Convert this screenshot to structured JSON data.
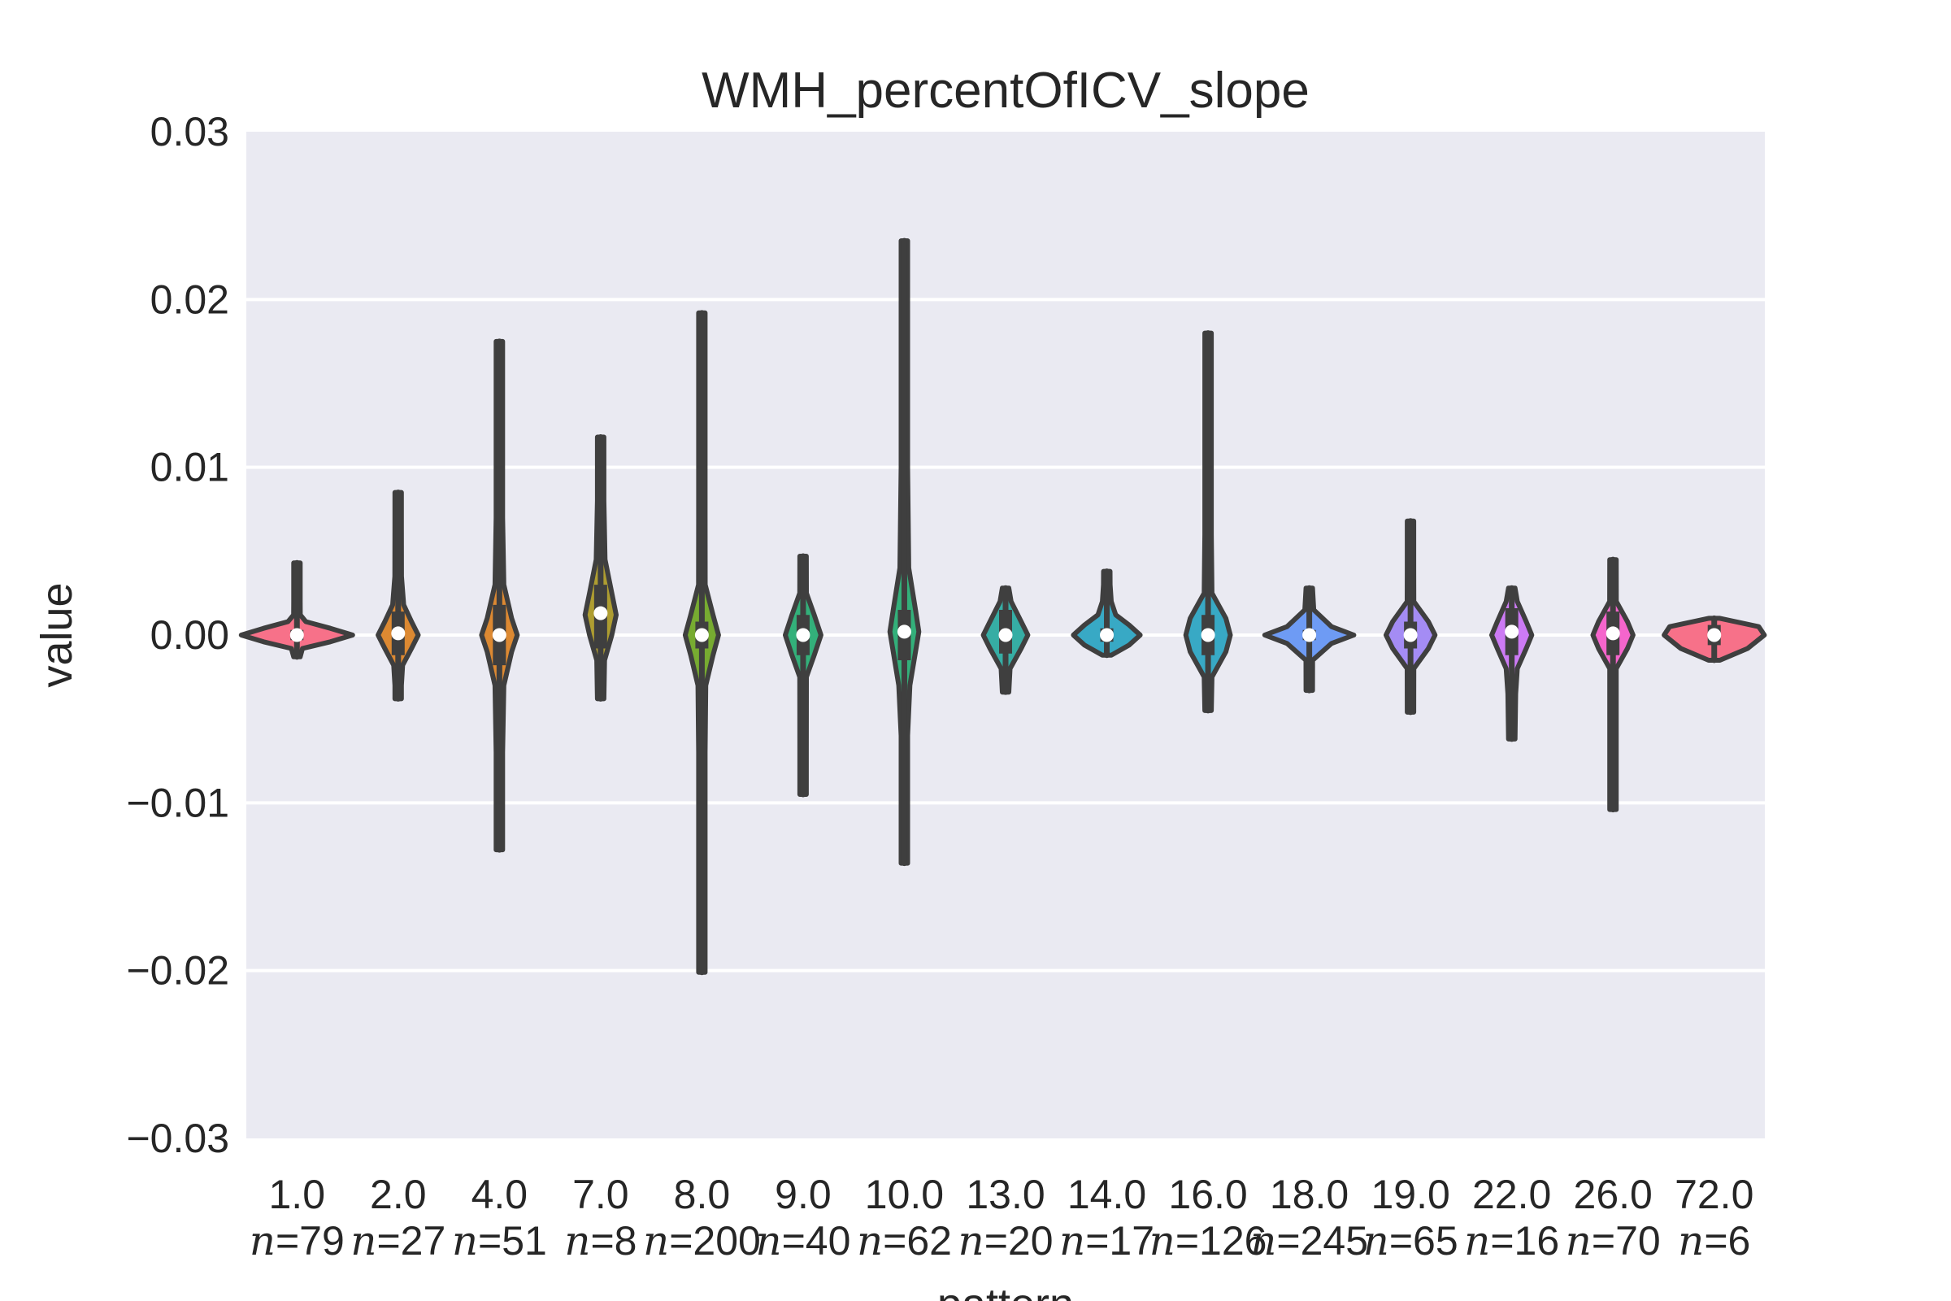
{
  "chart_data": {
    "type": "violin",
    "title": "WMH_percentOfICV_slope",
    "xlabel": "pattern",
    "ylabel": "value",
    "ylim": [
      -0.03,
      0.03
    ],
    "yticks": [
      "0.03",
      "0.02",
      "0.01",
      "0.00",
      "−0.01",
      "−0.02",
      "−0.03"
    ],
    "ytick_values": [
      0.03,
      0.02,
      0.01,
      0.0,
      -0.01,
      -0.02,
      -0.03
    ],
    "grid": true,
    "categories": [
      "1.0",
      "2.0",
      "4.0",
      "7.0",
      "8.0",
      "9.0",
      "10.0",
      "13.0",
      "14.0",
      "16.0",
      "18.0",
      "19.0",
      "22.0",
      "26.0",
      "72.0"
    ],
    "n_labels": [
      "=79",
      "=27",
      "=51",
      "=8",
      "=200",
      "=40",
      "=62",
      "=20",
      "=17",
      "=126",
      "=245",
      "=65",
      "=16",
      "=70",
      "=6"
    ],
    "n_symbol": "n",
    "colors": [
      "#f77189",
      "#dc8932",
      "#dc8932",
      "#ae9d31",
      "#77ab31",
      "#33b07a",
      "#33b07a",
      "#36ada4",
      "#38a9c5",
      "#38a9c5",
      "#6e9bf4",
      "#a48cf4",
      "#cc7af4",
      "#f565cc",
      "#f77189"
    ],
    "series": [
      {
        "name": "1.0",
        "min": -0.0013,
        "max": 0.0043,
        "median": 0.0,
        "q1": -0.0003,
        "q3": 0.0003,
        "shape": [
          [
            -0.0013,
            0.012
          ],
          [
            -0.0008,
            0.05
          ],
          [
            -0.0004,
            0.3
          ],
          [
            0.0,
            0.5
          ],
          [
            0.0004,
            0.3
          ],
          [
            0.0008,
            0.08
          ],
          [
            0.0012,
            0.03
          ],
          [
            0.002,
            0.025
          ],
          [
            0.003,
            0.02
          ],
          [
            0.0043,
            0.015
          ]
        ]
      },
      {
        "name": "2.0",
        "min": -0.0038,
        "max": 0.0085,
        "median": 0.0001,
        "q1": -0.0012,
        "q3": 0.0014,
        "shape": [
          [
            -0.0038,
            0.01
          ],
          [
            -0.003,
            0.025
          ],
          [
            -0.0018,
            0.04
          ],
          [
            -0.0008,
            0.12
          ],
          [
            0.0,
            0.18
          ],
          [
            0.0008,
            0.12
          ],
          [
            0.0018,
            0.05
          ],
          [
            0.0035,
            0.03
          ],
          [
            0.0065,
            0.025
          ],
          [
            0.0085,
            0.01
          ]
        ]
      },
      {
        "name": "4.0",
        "min": -0.0128,
        "max": 0.0175,
        "median": 0.0,
        "q1": -0.0018,
        "q3": 0.0018,
        "shape": [
          [
            -0.0128,
            0.01
          ],
          [
            -0.007,
            0.02
          ],
          [
            -0.003,
            0.04
          ],
          [
            -0.001,
            0.11
          ],
          [
            0.0,
            0.16
          ],
          [
            0.001,
            0.11
          ],
          [
            0.003,
            0.04
          ],
          [
            0.007,
            0.015
          ],
          [
            0.0175,
            0.01
          ]
        ]
      },
      {
        "name": "7.0",
        "min": -0.0038,
        "max": 0.0118,
        "median": 0.0013,
        "q1": -0.0008,
        "q3": 0.003,
        "shape": [
          [
            -0.0038,
            0.012
          ],
          [
            -0.0015,
            0.035
          ],
          [
            0.0,
            0.1
          ],
          [
            0.0012,
            0.14
          ],
          [
            0.0025,
            0.1
          ],
          [
            0.0045,
            0.04
          ],
          [
            0.008,
            0.025
          ],
          [
            0.0118,
            0.012
          ]
        ]
      },
      {
        "name": "8.0",
        "min": -0.0201,
        "max": 0.0192,
        "median": 0.0,
        "q1": -0.0008,
        "q3": 0.0008,
        "shape": [
          [
            -0.0201,
            0.01
          ],
          [
            -0.007,
            0.015
          ],
          [
            -0.003,
            0.035
          ],
          [
            -0.0012,
            0.1
          ],
          [
            0.0,
            0.15
          ],
          [
            0.0012,
            0.1
          ],
          [
            0.003,
            0.03
          ],
          [
            0.007,
            0.015
          ],
          [
            0.0192,
            0.01
          ]
        ]
      },
      {
        "name": "9.0",
        "min": -0.0095,
        "max": 0.0047,
        "median": 0.0,
        "q1": -0.0012,
        "q3": 0.0012,
        "shape": [
          [
            -0.0095,
            0.012
          ],
          [
            -0.007,
            0.02
          ],
          [
            -0.0025,
            0.03
          ],
          [
            -0.0012,
            0.1
          ],
          [
            0.0,
            0.16
          ],
          [
            0.0012,
            0.1
          ],
          [
            0.0025,
            0.03
          ],
          [
            0.0047,
            0.012
          ]
        ]
      },
      {
        "name": "10.0",
        "min": -0.0136,
        "max": 0.0235,
        "median": 0.0002,
        "q1": -0.0015,
        "q3": 0.0015,
        "shape": [
          [
            -0.0136,
            0.01
          ],
          [
            -0.006,
            0.02
          ],
          [
            -0.003,
            0.05
          ],
          [
            -0.001,
            0.1
          ],
          [
            0.0002,
            0.13
          ],
          [
            0.0015,
            0.1
          ],
          [
            0.004,
            0.04
          ],
          [
            0.01,
            0.015
          ],
          [
            0.0235,
            0.01
          ]
        ]
      },
      {
        "name": "13.0",
        "min": -0.0034,
        "max": 0.0028,
        "median": 0.0,
        "q1": -0.0011,
        "q3": 0.0015,
        "shape": [
          [
            -0.0034,
            0.012
          ],
          [
            -0.002,
            0.04
          ],
          [
            -0.0008,
            0.14
          ],
          [
            0.0,
            0.2
          ],
          [
            0.0008,
            0.14
          ],
          [
            0.002,
            0.05
          ],
          [
            0.0028,
            0.012
          ]
        ]
      },
      {
        "name": "14.0",
        "min": -0.0012,
        "max": 0.0038,
        "median": 0.0,
        "q1": -0.0004,
        "q3": 0.0004,
        "shape": [
          [
            -0.0012,
            0.04
          ],
          [
            -0.0006,
            0.2
          ],
          [
            0.0,
            0.3
          ],
          [
            0.0006,
            0.2
          ],
          [
            0.0012,
            0.08
          ],
          [
            0.002,
            0.04
          ],
          [
            0.003,
            0.03
          ],
          [
            0.0038,
            0.015
          ]
        ]
      },
      {
        "name": "16.0",
        "min": -0.0045,
        "max": 0.018,
        "median": 0.0,
        "q1": -0.0012,
        "q3": 0.0012,
        "shape": [
          [
            -0.0045,
            0.012
          ],
          [
            -0.0025,
            0.035
          ],
          [
            -0.001,
            0.16
          ],
          [
            0.0,
            0.2
          ],
          [
            0.001,
            0.16
          ],
          [
            0.0025,
            0.035
          ],
          [
            0.006,
            0.015
          ],
          [
            0.018,
            0.01
          ]
        ]
      },
      {
        "name": "18.0",
        "min": -0.0033,
        "max": 0.0028,
        "median": 0.0,
        "q1": -0.0003,
        "q3": 0.0003,
        "shape": [
          [
            -0.0033,
            0.012
          ],
          [
            -0.0015,
            0.03
          ],
          [
            -0.0005,
            0.2
          ],
          [
            0.0,
            0.4
          ],
          [
            0.0005,
            0.2
          ],
          [
            0.0015,
            0.04
          ],
          [
            0.0028,
            0.012
          ]
        ]
      },
      {
        "name": "19.0",
        "min": -0.0046,
        "max": 0.0068,
        "median": 0.0,
        "q1": -0.0008,
        "q3": 0.0008,
        "shape": [
          [
            -0.0046,
            0.012
          ],
          [
            -0.002,
            0.03
          ],
          [
            -0.0008,
            0.16
          ],
          [
            0.0,
            0.22
          ],
          [
            0.0008,
            0.16
          ],
          [
            0.002,
            0.03
          ],
          [
            0.004,
            0.02
          ],
          [
            0.0068,
            0.012
          ]
        ]
      },
      {
        "name": "22.0",
        "min": -0.0062,
        "max": 0.0028,
        "median": 0.0002,
        "q1": -0.0012,
        "q3": 0.0016,
        "shape": [
          [
            -0.0062,
            0.012
          ],
          [
            -0.0035,
            0.035
          ],
          [
            -0.002,
            0.05
          ],
          [
            -0.0008,
            0.13
          ],
          [
            0.0,
            0.18
          ],
          [
            0.0008,
            0.13
          ],
          [
            0.002,
            0.05
          ],
          [
            0.0028,
            0.012
          ]
        ]
      },
      {
        "name": "26.0",
        "min": -0.0104,
        "max": 0.0045,
        "median": 0.0001,
        "q1": -0.0012,
        "q3": 0.0014,
        "shape": [
          [
            -0.0104,
            0.012
          ],
          [
            -0.006,
            0.015
          ],
          [
            -0.002,
            0.025
          ],
          [
            -0.0008,
            0.13
          ],
          [
            0.0,
            0.18
          ],
          [
            0.0008,
            0.13
          ],
          [
            0.002,
            0.03
          ],
          [
            0.0045,
            0.012
          ]
        ]
      },
      {
        "name": "72.0",
        "min": -0.0015,
        "max": 0.001,
        "median": 0.0,
        "q1": -0.0006,
        "q3": 0.0006,
        "shape": [
          [
            -0.0015,
            0.05
          ],
          [
            -0.0008,
            0.3
          ],
          [
            0.0,
            0.45
          ],
          [
            0.0005,
            0.4
          ],
          [
            0.001,
            0.05
          ]
        ]
      }
    ]
  }
}
